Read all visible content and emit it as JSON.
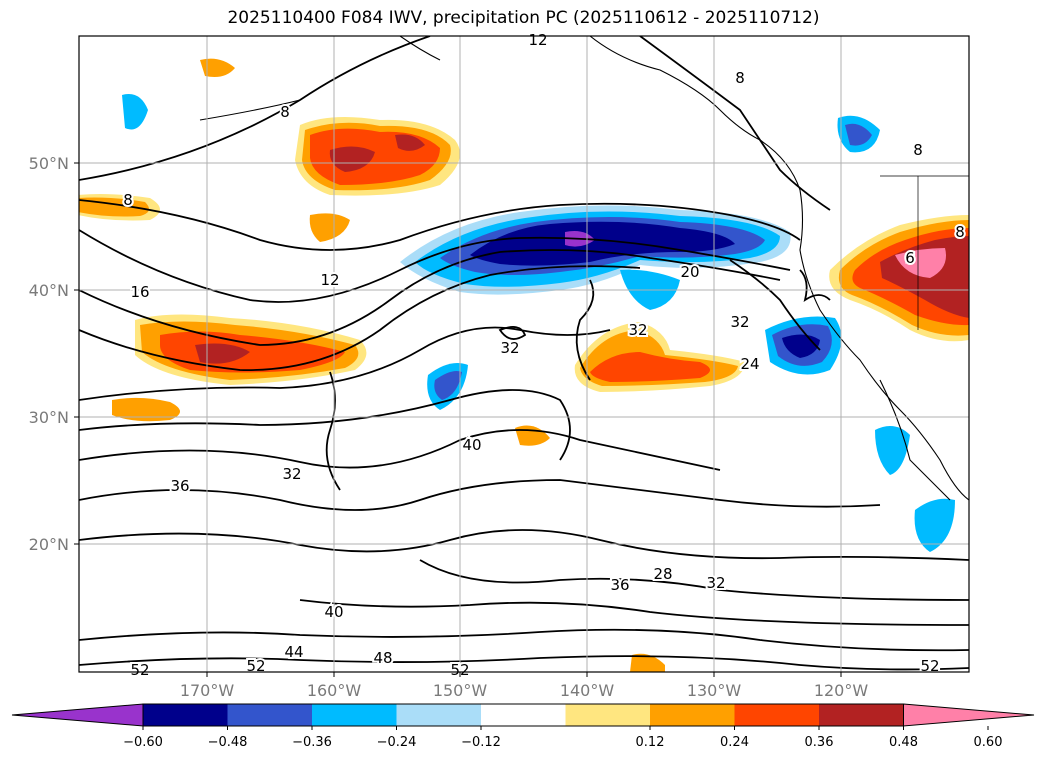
{
  "chart_data": {
    "type": "heatmap",
    "title": "2025110400 F084 IWV, precipitation PC (2025110612 - 2025110712)",
    "x_ticks": [
      "170°W",
      "160°W",
      "150°W",
      "140°W",
      "130°W",
      "120°W"
    ],
    "y_ticks": [
      "20°N",
      "30°N",
      "40°N",
      "50°N"
    ],
    "grid": true,
    "legend_position": "bottom",
    "colorbar": {
      "extend": "both",
      "ticks": [
        "−0.60",
        "−0.48",
        "−0.36",
        "−0.24",
        "−0.12",
        "0.12",
        "0.24",
        "0.36",
        "0.48",
        "0.60"
      ],
      "colors": [
        "#9933cc",
        "#00008b",
        "#3355cc",
        "#00bbff",
        "#aaddf8",
        "#ffffff",
        "#ffe680",
        "#ffa000",
        "#ff4500",
        "#b22222",
        "#ff80a8"
      ]
    },
    "contour_labels": [
      "12",
      "8",
      "8",
      "8",
      "8",
      "8",
      "16",
      "12",
      "20",
      "32",
      "32",
      "32",
      "24",
      "6",
      "40",
      "36",
      "32",
      "28",
      "32",
      "36",
      "40",
      "44",
      "48",
      "52",
      "52",
      "52",
      "52"
    ]
  }
}
